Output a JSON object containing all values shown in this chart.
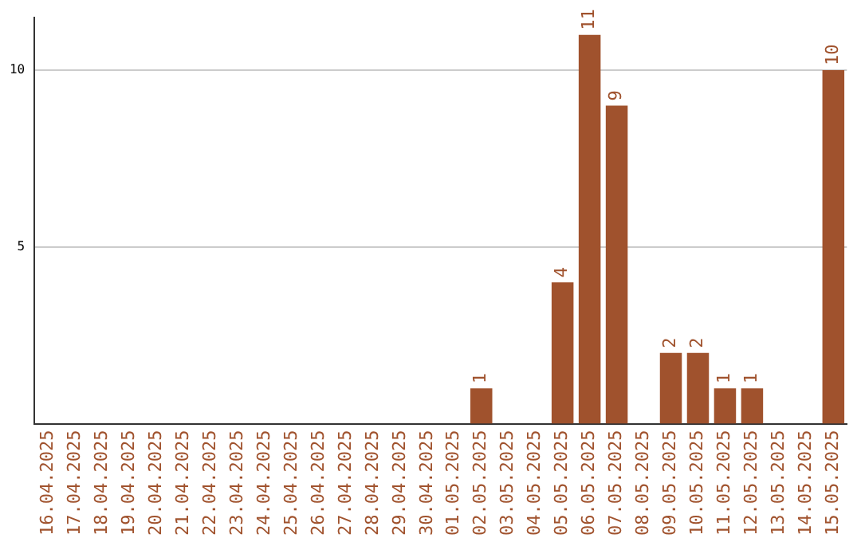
{
  "chart_data": {
    "type": "bar",
    "categories": [
      "16.04.2025",
      "17.04.2025",
      "18.04.2025",
      "19.04.2025",
      "20.04.2025",
      "21.04.2025",
      "22.04.2025",
      "23.04.2025",
      "24.04.2025",
      "25.04.2025",
      "26.04.2025",
      "27.04.2025",
      "28.04.2025",
      "29.04.2025",
      "30.04.2025",
      "01.05.2025",
      "02.05.2025",
      "03.05.2025",
      "04.05.2025",
      "05.05.2025",
      "06.05.2025",
      "07.05.2025",
      "08.05.2025",
      "09.05.2025",
      "10.05.2025",
      "11.05.2025",
      "12.05.2025",
      "13.05.2025",
      "14.05.2025",
      "15.05.2025"
    ],
    "values": [
      0,
      0,
      0,
      0,
      0,
      0,
      0,
      0,
      0,
      0,
      0,
      0,
      0,
      0,
      0,
      0,
      1,
      0,
      0,
      4,
      11,
      9,
      0,
      2,
      2,
      1,
      1,
      0,
      0,
      10
    ],
    "value_labels": [
      null,
      null,
      null,
      null,
      null,
      null,
      null,
      null,
      null,
      null,
      null,
      null,
      null,
      null,
      null,
      null,
      "1",
      null,
      null,
      "4",
      "11",
      "9",
      null,
      "2",
      "2",
      "1",
      "1",
      null,
      null,
      "10"
    ],
    "color": "#a0522d",
    "ylim": [
      0,
      11.5
    ],
    "yticks": [
      5,
      10
    ],
    "grid": "y",
    "legend": false
  }
}
